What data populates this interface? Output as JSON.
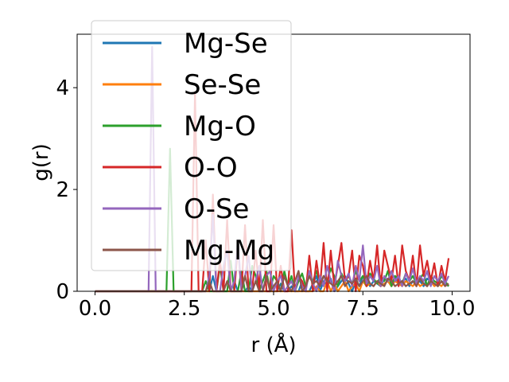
{
  "chart_data": {
    "type": "line",
    "title": "",
    "xlabel": "r (Å)",
    "ylabel": "g(r)",
    "xlim": [
      -0.5,
      10.5
    ],
    "ylim": [
      0,
      5.05
    ],
    "xticks": [
      0.0,
      2.5,
      5.0,
      7.5,
      10.0
    ],
    "xtick_labels": [
      "0.0",
      "2.5",
      "5.0",
      "7.5",
      "10.0"
    ],
    "yticks": [
      0,
      2,
      4
    ],
    "ytick_labels": [
      "0",
      "2",
      "4"
    ],
    "grid": false,
    "legend_position": "top-left",
    "x": [
      0.0,
      0.1,
      0.2,
      0.3,
      0.4,
      0.5,
      0.6,
      0.7,
      0.8,
      0.9,
      1.0,
      1.1,
      1.2,
      1.3,
      1.4,
      1.5,
      1.6,
      1.7,
      1.8,
      1.9,
      2.0,
      2.1,
      2.2,
      2.3,
      2.4,
      2.5,
      2.6,
      2.7,
      2.8,
      2.9,
      3.0,
      3.1,
      3.2,
      3.3,
      3.4,
      3.5,
      3.6,
      3.7,
      3.8,
      3.9,
      4.0,
      4.1,
      4.2,
      4.3,
      4.4,
      4.5,
      4.6,
      4.7,
      4.8,
      4.9,
      5.0,
      5.1,
      5.2,
      5.3,
      5.4,
      5.5,
      5.6,
      5.7,
      5.8,
      5.9,
      6.0,
      6.1,
      6.2,
      6.3,
      6.4,
      6.5,
      6.6,
      6.7,
      6.8,
      6.9,
      7.0,
      7.1,
      7.2,
      7.3,
      7.4,
      7.5,
      7.6,
      7.7,
      7.8,
      7.9,
      8.0,
      8.1,
      8.2,
      8.3,
      8.4,
      8.5,
      8.6,
      8.7,
      8.8,
      8.9,
      9.0,
      9.1,
      9.2,
      9.3,
      9.4,
      9.5,
      9.6,
      9.7,
      9.8,
      9.9
    ],
    "series": [
      {
        "name": "Mg-Se",
        "color": "#1f77b4",
        "values": [
          0,
          0,
          0,
          0,
          0,
          0,
          0,
          0,
          0,
          0,
          0,
          0,
          0,
          0,
          0,
          0,
          0,
          0,
          0,
          0,
          0,
          0,
          0,
          0,
          0,
          0,
          0,
          0,
          0,
          0,
          0,
          0,
          0,
          0.3,
          0,
          0,
          0,
          0,
          0,
          0.2,
          0,
          0,
          0,
          0.1,
          0,
          0,
          0,
          0,
          0,
          0,
          0,
          0,
          0.15,
          0,
          0,
          0.1,
          0,
          0,
          0.2,
          0,
          0,
          0.15,
          0.3,
          0,
          0.2,
          0.1,
          0.25,
          0,
          0.1,
          0.2,
          0.3,
          0.15,
          0,
          0.2,
          0.1,
          0.3,
          0.25,
          0.1,
          0.2,
          0.15,
          0.1,
          0.25,
          0.2,
          0.1,
          0.3,
          0.15,
          0.2,
          0.25,
          0.1,
          0.2,
          0.15,
          0.2,
          0.1,
          0.25,
          0.2,
          0.15,
          0.1,
          0.2,
          0.15,
          0.1
        ]
      },
      {
        "name": "Se-Se",
        "color": "#ff7f0e",
        "values": [
          0,
          0,
          0,
          0,
          0,
          0,
          0,
          0,
          0,
          0,
          0,
          0,
          0,
          0,
          0,
          0,
          0,
          0,
          0,
          0,
          0,
          0,
          0,
          0,
          0,
          0,
          0,
          0,
          0,
          0,
          0,
          0,
          0,
          0,
          0,
          0,
          0,
          0,
          0,
          0,
          0,
          0,
          0,
          0,
          0,
          0,
          0,
          0,
          0,
          0,
          0,
          0,
          0,
          0,
          0,
          0,
          0,
          0,
          0,
          0,
          0,
          0,
          0.1,
          0,
          0,
          0.2,
          0,
          0.15,
          0,
          0.1,
          0.2,
          0,
          0.1,
          0.15,
          0,
          0.2,
          0.1,
          0.15,
          0.1,
          0.2,
          0.1,
          0.15,
          0.2,
          0.1,
          0.2,
          0.15,
          0.1,
          0.2,
          0.15,
          0.1,
          0.2,
          0.1,
          0.15,
          0.1,
          0.2,
          0.1,
          0.15,
          0.1,
          0.2,
          0.1
        ]
      },
      {
        "name": "Mg-O",
        "color": "#2ca02c",
        "values": [
          0,
          0,
          0,
          0,
          0,
          0,
          0,
          0,
          0,
          0,
          0,
          0,
          0,
          0,
          0,
          0,
          0,
          0,
          0,
          0,
          0,
          2.8,
          0,
          0,
          0,
          0,
          0,
          0,
          0,
          0,
          0,
          0.2,
          0,
          0,
          0,
          0.5,
          0,
          0,
          0.6,
          0,
          0,
          0.4,
          0,
          0,
          0.5,
          0.3,
          0,
          0.2,
          0.4,
          0,
          0.3,
          0.2,
          0,
          0.4,
          0.1,
          0.3,
          0,
          0.2,
          0.35,
          0.1,
          0.3,
          0.2,
          0.4,
          0.15,
          0.3,
          0.2,
          0.45,
          0.3,
          0.1,
          0.35,
          0.2,
          0.3,
          0.15,
          0.4,
          0.2,
          0.3,
          0.1,
          0.35,
          0.25,
          0.15,
          0.3,
          0.2,
          0.4,
          0.1,
          0.3,
          0.25,
          0.15,
          0.35,
          0.2,
          0.3,
          0.15,
          0.25,
          0.35,
          0.1,
          0.3,
          0.2,
          0.15,
          0.3,
          0.2,
          0.1
        ]
      },
      {
        "name": "O-O",
        "color": "#d62728",
        "values": [
          0,
          0,
          0,
          0,
          0,
          0,
          0,
          0,
          0,
          0,
          0,
          0,
          0,
          0,
          0,
          0,
          0,
          0,
          0,
          0,
          0,
          0,
          0,
          0,
          0,
          0,
          0,
          0,
          3.9,
          0,
          0,
          1.0,
          0,
          1.9,
          0,
          0.6,
          0,
          1.4,
          0,
          0,
          0.9,
          0,
          1.3,
          0,
          0,
          0.8,
          0,
          1.4,
          0,
          0,
          1.3,
          0,
          0.5,
          0,
          0,
          1.2,
          0,
          0.3,
          0.2,
          0,
          0.7,
          0,
          0.6,
          0.1,
          0.95,
          0,
          0.8,
          0.1,
          0.5,
          0.95,
          0.2,
          0.3,
          0.8,
          0,
          0.7,
          0.5,
          0.1,
          0.6,
          0.2,
          0.9,
          0.1,
          0.8,
          0.5,
          0.2,
          0.7,
          0.1,
          0.9,
          0.4,
          0.2,
          0.7,
          0.1,
          0.9,
          0.3,
          0.6,
          0.2,
          0.55,
          0.1,
          0.5,
          0.2,
          0.65
        ]
      },
      {
        "name": "O-Se",
        "color": "#9467bd",
        "values": [
          0,
          0,
          0,
          0,
          0,
          0,
          0,
          0,
          0,
          0,
          0,
          0,
          0,
          0,
          0,
          0,
          4.8,
          0,
          0,
          0,
          0,
          0,
          0,
          0,
          0,
          0,
          0,
          0,
          0,
          0,
          0,
          0,
          0.3,
          1.5,
          0,
          0,
          0.5,
          0.8,
          0,
          0.2,
          1.0,
          0,
          0.3,
          0.7,
          0,
          0.2,
          0.5,
          0,
          0.3,
          0.4,
          0,
          0.2,
          0.3,
          0,
          0.1,
          0.2,
          0,
          0.3,
          0.1,
          0,
          0.4,
          0.15,
          0,
          0.3,
          0.1,
          0.5,
          0.2,
          0,
          0.6,
          0.3,
          0.2,
          0.35,
          0.1,
          0.5,
          0.2,
          0.9,
          0.15,
          0.3,
          0.2,
          0.5,
          0.1,
          0.3,
          0.2,
          0.4,
          0.2,
          0.3,
          0.1,
          0.35,
          0.2,
          0.45,
          0.15,
          0.3,
          0.2,
          0.4,
          0.1,
          0.3,
          0.2,
          0.35,
          0.15,
          0.3
        ]
      },
      {
        "name": "Mg-Mg",
        "color": "#8c564b",
        "values": [
          0,
          0,
          0,
          0,
          0,
          0,
          0,
          0,
          0,
          0,
          0,
          0,
          0,
          0,
          0,
          0,
          0,
          0,
          0,
          0,
          0,
          0,
          0,
          0,
          0,
          0,
          0,
          0,
          0,
          0,
          0,
          0,
          0.2,
          0,
          0,
          0,
          0,
          0.2,
          0,
          0,
          0,
          0,
          0.3,
          0,
          0,
          0.2,
          0,
          0,
          0.3,
          0,
          0.1,
          0.2,
          0,
          0.3,
          0.1,
          0,
          0.2,
          0.4,
          0,
          0.1,
          0.3,
          0.15,
          0.2,
          0.1,
          0.3,
          0.2,
          0.15,
          0.1,
          0.2,
          0.3,
          0.1,
          0.2,
          0.15,
          0.25,
          0.1,
          0.2,
          0.3,
          0.15,
          0.1,
          0.2,
          0.15,
          0.1,
          0.25,
          0.2,
          0.1,
          0.15,
          0.2,
          0.1,
          0.15,
          0.2,
          0.1,
          0.25,
          0.15,
          0.1,
          0.2,
          0.15,
          0.1,
          0.2,
          0.1,
          0.15
        ]
      }
    ]
  }
}
